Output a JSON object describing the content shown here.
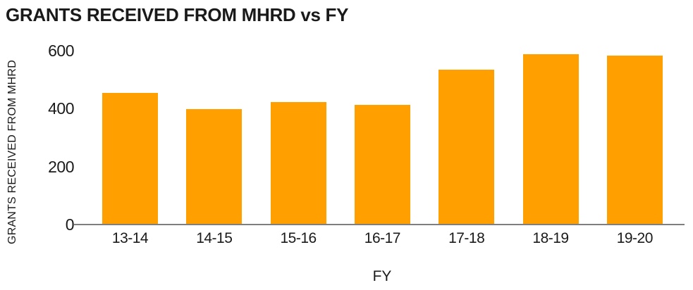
{
  "page": {
    "background": "#FFFFFF"
  },
  "chart_data": {
    "type": "bar",
    "title": "GRANTS RECEIVED FROM MHRD vs FY",
    "xlabel": "FY",
    "ylabel": "GRANTS RECEIVED FROM MHRD",
    "categories": [
      "13-14",
      "14-15",
      "15-16",
      "16-17",
      "17-18",
      "18-19",
      "19-20"
    ],
    "values": [
      450,
      395,
      420,
      410,
      530,
      585,
      580
    ],
    "ylim": [
      0,
      600
    ],
    "yticks": [
      0,
      200,
      400,
      600
    ],
    "grid": false,
    "legend": "none",
    "bar_color": "#FFA000",
    "axis_line_color": "#7F7F7F",
    "text_color": "#1A1A1A"
  }
}
